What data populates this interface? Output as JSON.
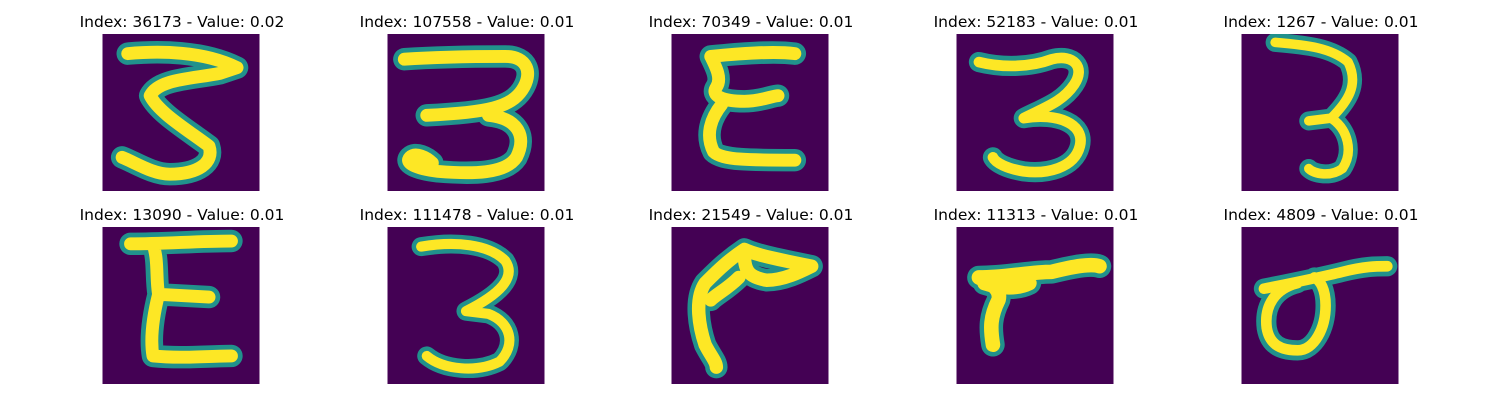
{
  "colors": {
    "background": "#440154",
    "mid": "#21918c",
    "stroke": "#fde725"
  },
  "panels": [
    {
      "title": "Index: 36173 - Value: 0.02"
    },
    {
      "title": "Index: 107558 - Value: 0.01"
    },
    {
      "title": "Index: 70349 - Value: 0.01"
    },
    {
      "title": "Index: 52183 - Value: 0.01"
    },
    {
      "title": "Index: 1267 - Value: 0.01"
    },
    {
      "title": "Index: 13090 - Value: 0.01"
    },
    {
      "title": "Index: 111478 - Value: 0.01"
    },
    {
      "title": "Index: 21549 - Value: 0.01"
    },
    {
      "title": "Index: 11313 - Value: 0.01"
    },
    {
      "title": "Index: 4809 - Value: 0.01"
    }
  ]
}
